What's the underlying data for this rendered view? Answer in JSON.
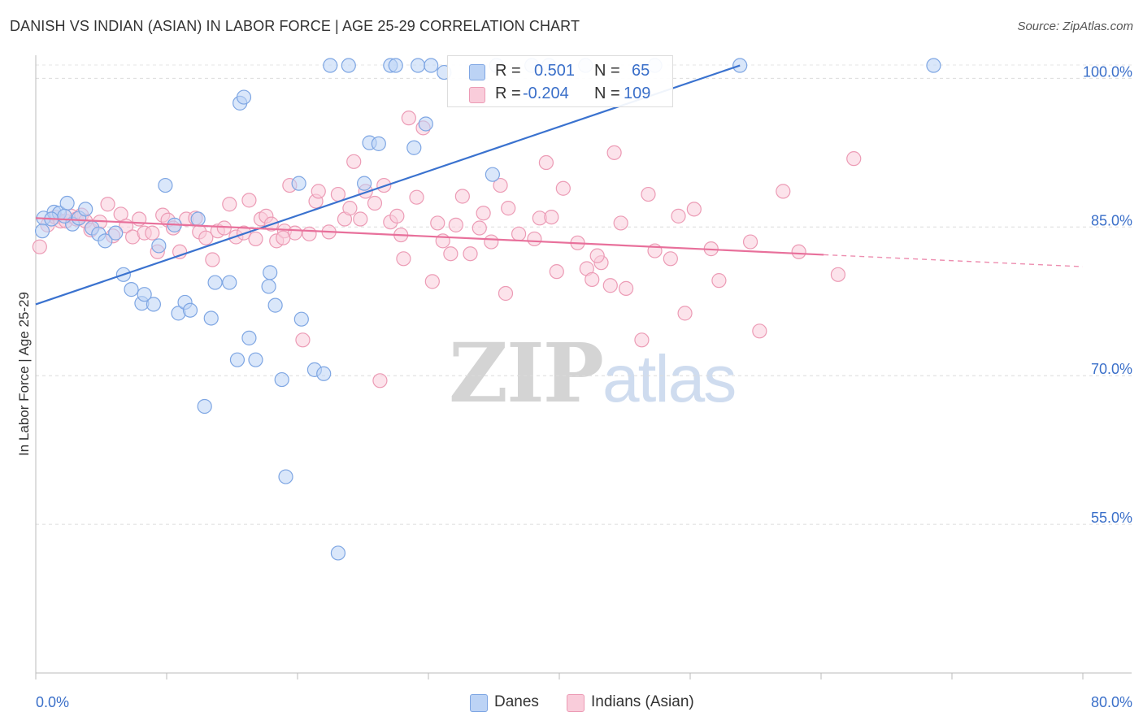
{
  "title": "DANISH VS INDIAN (ASIAN) IN LABOR FORCE | AGE 25-29 CORRELATION CHART",
  "source": "Source: ZipAtlas.com",
  "watermark": {
    "zip": "ZIP",
    "atlas": "atlas"
  },
  "legend_stats": [
    {
      "r_label": "R =",
      "r_value": "0.501",
      "n_label": "N =",
      "n_value": "65",
      "color": "#a9c6ef",
      "border": "#6d9be0"
    },
    {
      "r_label": "R =",
      "r_value": "-0.204",
      "n_label": "N =",
      "n_value": "109",
      "color": "#f7bfd0",
      "border": "#e98aa9"
    }
  ],
  "bottom_legend": [
    {
      "label": "Danes",
      "color": "#bcd3f5",
      "border": "#7ea6e3"
    },
    {
      "label": "Indians (Asian)",
      "color": "#f9ccda",
      "border": "#ec9bb5"
    }
  ],
  "chart_data": {
    "type": "scatter",
    "title": "DANISH VS INDIAN (ASIAN) IN LABOR FORCE | AGE 25-29 CORRELATION CHART",
    "xlabel": "",
    "ylabel": "In Labor Force | Age 25-29",
    "xlim": [
      0,
      80
    ],
    "ylim": [
      40,
      102
    ],
    "x_tick_labels": [
      "0.0%",
      "80.0%"
    ],
    "y_ticks": [
      55,
      70,
      85,
      100
    ],
    "y_tick_labels": [
      "55.0%",
      "70.0%",
      "85.0%",
      "100.0%"
    ],
    "grid": true,
    "legend_position": "top-center",
    "series": [
      {
        "name": "Danes",
        "color": "#3a72cf",
        "marker_fill": "#bcd3f5",
        "marker_stroke": "#7ea6e3",
        "trend": {
          "x": [
            0,
            53.8
          ],
          "y": [
            77.2,
            101.3
          ],
          "style": "solid"
        },
        "points": [
          [
            0.6,
            85.9
          ],
          [
            1.4,
            86.5
          ],
          [
            1.8,
            86.4
          ],
          [
            2.4,
            87.4
          ],
          [
            2.8,
            85.3
          ],
          [
            3.3,
            85.9
          ],
          [
            3.8,
            86.8
          ],
          [
            4.3,
            84.9
          ],
          [
            4.8,
            84.3
          ],
          [
            5.3,
            83.6
          ],
          [
            6.1,
            84.4
          ],
          [
            6.7,
            80.2
          ],
          [
            7.3,
            78.7
          ],
          [
            8.1,
            77.3
          ],
          [
            8.3,
            78.2
          ],
          [
            9.0,
            77.2
          ],
          [
            9.4,
            83.1
          ],
          [
            9.9,
            89.2
          ],
          [
            10.6,
            85.2
          ],
          [
            10.9,
            76.3
          ],
          [
            11.4,
            77.4
          ],
          [
            11.8,
            76.6
          ],
          [
            12.4,
            85.8
          ],
          [
            12.9,
            66.9
          ],
          [
            13.4,
            75.8
          ],
          [
            13.7,
            79.4
          ],
          [
            14.8,
            79.4
          ],
          [
            15.4,
            71.6
          ],
          [
            15.6,
            97.5
          ],
          [
            15.9,
            98.1
          ],
          [
            16.3,
            73.8
          ],
          [
            16.8,
            71.6
          ],
          [
            17.8,
            79.0
          ],
          [
            17.9,
            80.4
          ],
          [
            18.3,
            77.1
          ],
          [
            18.8,
            69.6
          ],
          [
            19.1,
            59.8
          ],
          [
            20.1,
            89.4
          ],
          [
            20.3,
            75.7
          ],
          [
            21.3,
            70.6
          ],
          [
            22.0,
            70.2
          ],
          [
            22.5,
            101.3
          ],
          [
            23.1,
            52.1
          ],
          [
            23.9,
            101.3
          ],
          [
            25.1,
            89.4
          ],
          [
            25.5,
            93.5
          ],
          [
            26.2,
            93.4
          ],
          [
            27.1,
            101.3
          ],
          [
            27.5,
            101.3
          ],
          [
            28.9,
            93.0
          ],
          [
            29.2,
            101.3
          ],
          [
            29.8,
            95.4
          ],
          [
            30.2,
            101.3
          ],
          [
            31.2,
            100.6
          ],
          [
            34.9,
            90.3
          ],
          [
            35.2,
            101.3
          ],
          [
            37.9,
            101.3
          ],
          [
            39.2,
            101.3
          ],
          [
            42.0,
            101.3
          ],
          [
            47.3,
            101.3
          ],
          [
            53.8,
            101.3
          ],
          [
            68.6,
            101.3
          ],
          [
            0.5,
            84.6
          ],
          [
            1.2,
            85.8
          ],
          [
            2.2,
            86.1
          ]
        ]
      },
      {
        "name": "Indians (Asian)",
        "color": "#e8709b",
        "marker_fill": "#f9ccda",
        "marker_stroke": "#ec9bb5",
        "trend": {
          "x": [
            0,
            60.2,
            80
          ],
          "y": [
            85.9,
            82.2,
            81.0
          ],
          "style": "solid-then-dashed"
        },
        "points": [
          [
            0.3,
            83.0
          ],
          [
            0.9,
            85.2
          ],
          [
            1.5,
            86.0
          ],
          [
            1.9,
            85.6
          ],
          [
            2.3,
            85.6
          ],
          [
            2.7,
            86.1
          ],
          [
            3.1,
            85.8
          ],
          [
            3.5,
            86.2
          ],
          [
            3.8,
            85.6
          ],
          [
            4.2,
            84.7
          ],
          [
            4.9,
            85.5
          ],
          [
            5.5,
            87.3
          ],
          [
            5.9,
            84.1
          ],
          [
            6.5,
            86.3
          ],
          [
            6.9,
            85.1
          ],
          [
            7.4,
            84.0
          ],
          [
            7.9,
            85.8
          ],
          [
            8.3,
            84.4
          ],
          [
            8.9,
            84.4
          ],
          [
            9.3,
            82.5
          ],
          [
            9.7,
            86.2
          ],
          [
            10.1,
            85.7
          ],
          [
            10.5,
            84.9
          ],
          [
            11.0,
            82.5
          ],
          [
            11.5,
            85.8
          ],
          [
            12.2,
            85.9
          ],
          [
            12.5,
            84.5
          ],
          [
            13.0,
            83.9
          ],
          [
            13.5,
            81.7
          ],
          [
            13.9,
            84.6
          ],
          [
            14.4,
            84.9
          ],
          [
            14.8,
            87.3
          ],
          [
            15.3,
            84.0
          ],
          [
            15.9,
            84.4
          ],
          [
            16.3,
            87.7
          ],
          [
            16.8,
            83.8
          ],
          [
            17.2,
            85.8
          ],
          [
            17.6,
            86.1
          ],
          [
            18.0,
            85.3
          ],
          [
            18.4,
            83.6
          ],
          [
            19.0,
            84.6
          ],
          [
            19.4,
            89.2
          ],
          [
            19.8,
            84.4
          ],
          [
            20.4,
            73.6
          ],
          [
            20.9,
            84.3
          ],
          [
            21.4,
            87.6
          ],
          [
            21.6,
            88.6
          ],
          [
            22.4,
            84.5
          ],
          [
            23.1,
            88.3
          ],
          [
            23.6,
            85.8
          ],
          [
            24.3,
            91.6
          ],
          [
            24.8,
            85.8
          ],
          [
            25.2,
            88.6
          ],
          [
            25.9,
            87.4
          ],
          [
            26.3,
            69.5
          ],
          [
            26.6,
            89.2
          ],
          [
            27.1,
            85.5
          ],
          [
            27.6,
            86.1
          ],
          [
            28.1,
            81.8
          ],
          [
            28.5,
            96.0
          ],
          [
            29.1,
            88.0
          ],
          [
            29.6,
            95.0
          ],
          [
            30.3,
            79.5
          ],
          [
            30.7,
            85.4
          ],
          [
            31.1,
            83.6
          ],
          [
            31.7,
            82.3
          ],
          [
            32.1,
            85.2
          ],
          [
            32.6,
            88.1
          ],
          [
            33.2,
            82.3
          ],
          [
            33.9,
            84.9
          ],
          [
            34.2,
            86.4
          ],
          [
            34.8,
            83.5
          ],
          [
            35.5,
            89.2
          ],
          [
            36.1,
            86.9
          ],
          [
            36.9,
            84.3
          ],
          [
            38.1,
            83.8
          ],
          [
            38.5,
            85.9
          ],
          [
            39.0,
            91.5
          ],
          [
            39.8,
            80.5
          ],
          [
            40.3,
            88.9
          ],
          [
            41.4,
            83.4
          ],
          [
            42.1,
            80.8
          ],
          [
            42.5,
            79.7
          ],
          [
            43.2,
            81.4
          ],
          [
            43.9,
            79.1
          ],
          [
            44.2,
            92.5
          ],
          [
            44.7,
            85.4
          ],
          [
            45.1,
            78.8
          ],
          [
            46.3,
            73.6
          ],
          [
            46.8,
            88.3
          ],
          [
            47.3,
            82.6
          ],
          [
            48.5,
            81.8
          ],
          [
            49.6,
            76.3
          ],
          [
            50.3,
            86.8
          ],
          [
            51.6,
            82.8
          ],
          [
            52.2,
            79.6
          ],
          [
            54.6,
            83.5
          ],
          [
            55.3,
            74.5
          ],
          [
            57.1,
            88.6
          ],
          [
            58.3,
            82.5
          ],
          [
            61.3,
            80.2
          ],
          [
            62.5,
            91.9
          ],
          [
            49.1,
            86.1
          ],
          [
            39.4,
            86.0
          ],
          [
            24.0,
            86.9
          ],
          [
            18.9,
            83.9
          ],
          [
            27.9,
            84.2
          ],
          [
            35.9,
            78.3
          ],
          [
            42.9,
            82.1
          ]
        ]
      }
    ]
  }
}
